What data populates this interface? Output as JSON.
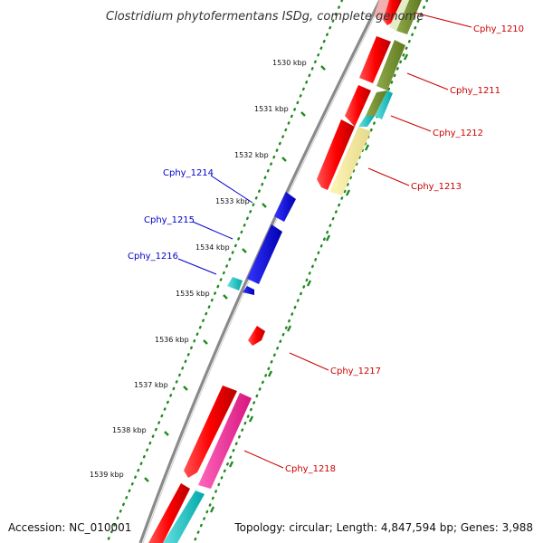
{
  "title": "Clostridium phytofermentans ISDg, complete genome",
  "footer": {
    "accession": "Accession: NC_010001",
    "summary": "Topology: circular; Length: 4,847,594 bp; Genes: 3,988"
  },
  "ruler": {
    "ticks": [
      "1530 kbp",
      "1531 kbp",
      "1532 kbp",
      "1533 kbp",
      "1534 kbp",
      "1535 kbp",
      "1536 kbp",
      "1537 kbp",
      "1538 kbp",
      "1539 kbp"
    ]
  },
  "colors": {
    "reverse_label": "#0000cc",
    "forward_label": "#cc0000",
    "backbone": "#888888",
    "dots": "#1f8a1f"
  },
  "genes": {
    "reverse": [
      "Cphy_1214",
      "Cphy_1215",
      "Cphy_1216"
    ],
    "forward": [
      "Cphy_1210",
      "Cphy_1211",
      "Cphy_1212",
      "Cphy_1213",
      "Cphy_1217",
      "Cphy_1218"
    ]
  }
}
